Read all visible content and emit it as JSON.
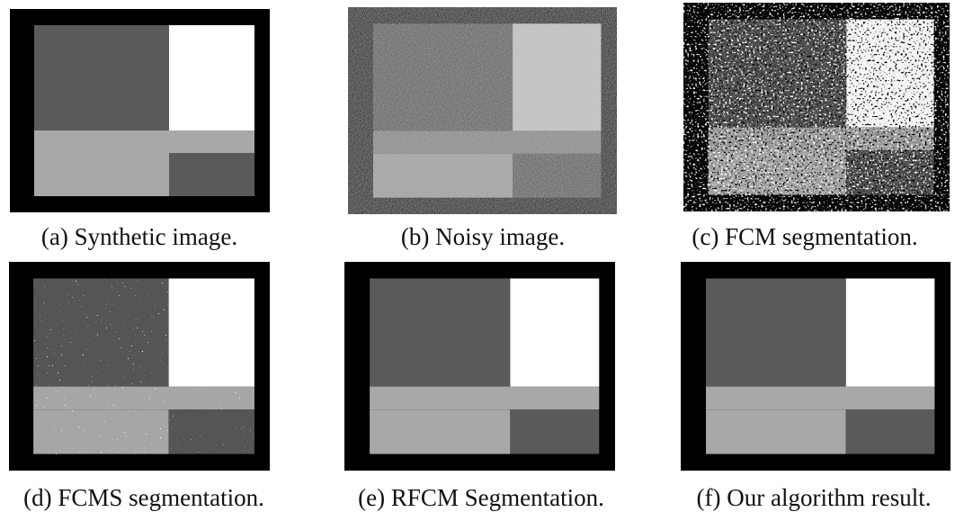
{
  "panels": [
    {
      "caption": "(a) Synthetic image."
    },
    {
      "caption": "(b) Noisy image."
    },
    {
      "caption": "(c) FCM segmentation."
    },
    {
      "caption": "(d) FCMS segmentation."
    },
    {
      "caption": "(e) RFCM Segmentation."
    },
    {
      "caption": "(f) Our algorithm result."
    }
  ]
}
